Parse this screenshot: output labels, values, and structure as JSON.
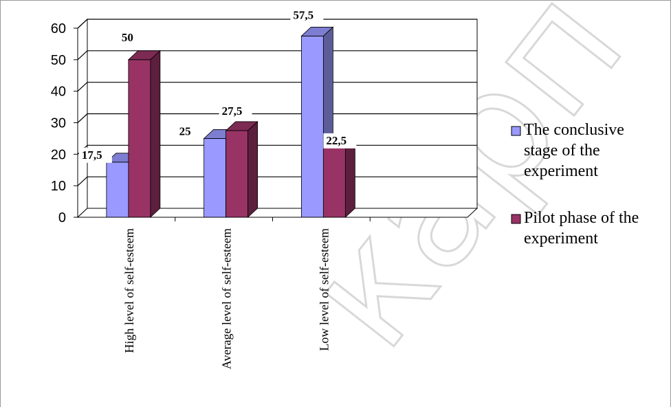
{
  "chart_data": {
    "type": "bar",
    "style": "3d-clustered-column",
    "categories": [
      "High level of self-esteem",
      "Average level of self-esteem",
      "Low level of self-esteem"
    ],
    "series": [
      {
        "name": "The conclusive stage of the experiment",
        "values": [
          17.5,
          25,
          57.5
        ],
        "labels": [
          "17,5",
          "25",
          "57,5"
        ],
        "color": "#9999ff"
      },
      {
        "name": "Pilot phase of the experiment",
        "values": [
          50,
          27.5,
          22.5
        ],
        "labels": [
          "50",
          "27,5",
          "22,5"
        ],
        "color": "#993366"
      }
    ],
    "yticks": [
      "0",
      "10",
      "20",
      "30",
      "40",
      "50",
      "60"
    ],
    "ylim": [
      0,
      60
    ],
    "grid": true,
    "legend_position": "right",
    "legend_lines": [
      [
        "The conclusive",
        "stage of the",
        "experiment"
      ],
      [
        "Pilot phase of the",
        "experiment"
      ]
    ]
  },
  "watermark": "карп"
}
